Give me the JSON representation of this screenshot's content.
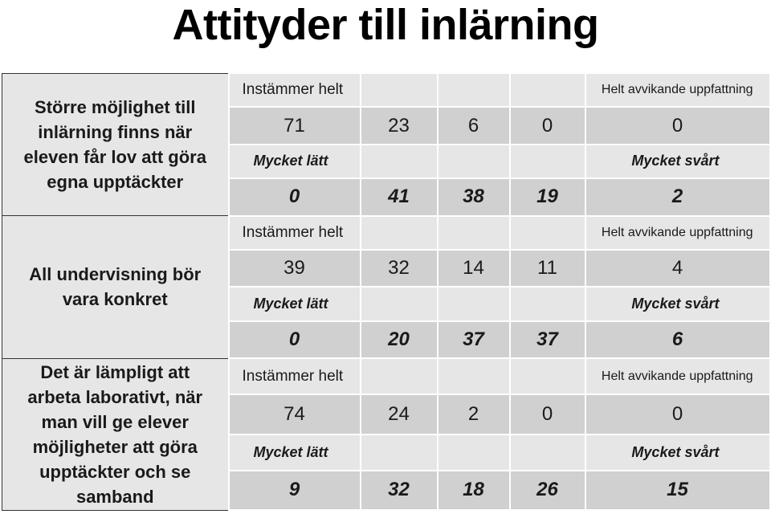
{
  "title": "Attityder till inlärning",
  "statements": [
    {
      "text": "Större möjlighet till inlärning finns när eleven får lov att göra egna upptäckter",
      "agree_label": "Instämmer helt",
      "disagree_label": "Helt avvikande uppfattning",
      "agree_values": [
        "71",
        "23",
        "6",
        "0",
        "0"
      ],
      "easy_label": "Mycket lätt",
      "hard_label": "Mycket svårt",
      "difficulty_values": [
        "0",
        "41",
        "38",
        "19",
        "2"
      ]
    },
    {
      "text": "All undervisning bör vara konkret",
      "agree_label": "Instämmer helt",
      "disagree_label": "Helt avvikande uppfattning",
      "agree_values": [
        "39",
        "32",
        "14",
        "11",
        "4"
      ],
      "easy_label": "Mycket lätt",
      "hard_label": "Mycket svårt",
      "difficulty_values": [
        "0",
        "20",
        "37",
        "37",
        "6"
      ]
    },
    {
      "text": "Det är lämpligt att arbeta laborativt, när man vill ge elever möjligheter att göra upptäckter och se samband",
      "agree_label": "Instämmer helt",
      "disagree_label": "Helt avvikande uppfattning",
      "agree_values": [
        "74",
        "24",
        "2",
        "0",
        "0"
      ],
      "easy_label": "Mycket lätt",
      "hard_label": "Mycket svårt",
      "difficulty_values": [
        "9",
        "32",
        "18",
        "26",
        "15"
      ]
    }
  ]
}
